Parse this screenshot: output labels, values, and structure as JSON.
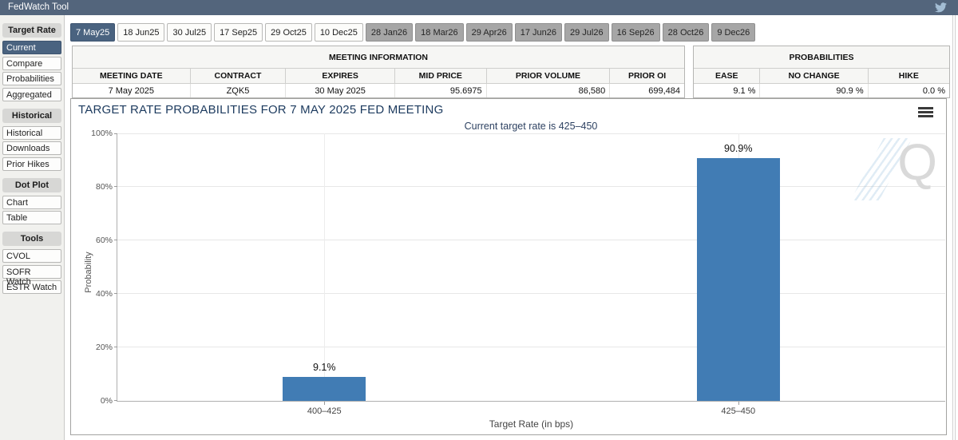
{
  "top_bar": {
    "title": "FedWatch Tool",
    "twitter_icon_color": "#a3bdd4",
    "bg_color": "#53657c"
  },
  "sidebar": {
    "sections": [
      {
        "header": "Target Rate",
        "items": [
          {
            "label": "Current",
            "selected": true
          },
          {
            "label": "Compare",
            "selected": false
          },
          {
            "label": "Probabilities",
            "selected": false
          },
          {
            "label": "Aggregated",
            "selected": false
          }
        ]
      },
      {
        "header": "Historical",
        "items": [
          {
            "label": "Historical",
            "selected": false
          },
          {
            "label": "Downloads",
            "selected": false
          },
          {
            "label": "Prior Hikes",
            "selected": false
          }
        ]
      },
      {
        "header": "Dot Plot",
        "items": [
          {
            "label": "Chart",
            "selected": false
          },
          {
            "label": "Table",
            "selected": false
          }
        ]
      },
      {
        "header": "Tools",
        "items": [
          {
            "label": "CVOL",
            "selected": false
          },
          {
            "label": "SOFR Watch",
            "selected": false
          },
          {
            "label": "ESTR Watch",
            "selected": false
          }
        ]
      }
    ]
  },
  "tabs": [
    {
      "label": "7 May25",
      "state": "selected"
    },
    {
      "label": "18 Jun25",
      "state": "year25"
    },
    {
      "label": "30 Jul25",
      "state": "year25"
    },
    {
      "label": "17 Sep25",
      "state": "year25"
    },
    {
      "label": "29 Oct25",
      "state": "year25"
    },
    {
      "label": "10 Dec25",
      "state": "year25"
    },
    {
      "label": "28 Jan26",
      "state": "year26"
    },
    {
      "label": "18 Mar26",
      "state": "year26"
    },
    {
      "label": "29 Apr26",
      "state": "year26"
    },
    {
      "label": "17 Jun26",
      "state": "year26"
    },
    {
      "label": "29 Jul26",
      "state": "year26"
    },
    {
      "label": "16 Sep26",
      "state": "year26"
    },
    {
      "label": "28 Oct26",
      "state": "year26"
    },
    {
      "label": "9 Dec26",
      "state": "year26"
    }
  ],
  "meeting_info": {
    "title": "MEETING INFORMATION",
    "columns": [
      "MEETING DATE",
      "CONTRACT",
      "EXPIRES",
      "MID PRICE",
      "PRIOR VOLUME",
      "PRIOR OI"
    ],
    "row": [
      "7 May 2025",
      "ZQK5",
      "30 May 2025",
      "95.6975",
      "86,580",
      "699,484"
    ]
  },
  "probabilities": {
    "title": "PROBABILITIES",
    "columns": [
      "EASE",
      "NO CHANGE",
      "HIKE"
    ],
    "row": [
      "9.1 %",
      "90.9 %",
      "0.0 %"
    ]
  },
  "chart_data": {
    "type": "bar",
    "title": "TARGET RATE PROBABILITIES FOR 7 MAY 2025 FED MEETING",
    "subtitle": "Current target rate is 425–450",
    "categories": [
      "400–425",
      "425–450"
    ],
    "values": [
      9.1,
      90.9
    ],
    "value_labels": [
      "9.1%",
      "90.9%"
    ],
    "xlabel": "Target Rate (in bps)",
    "ylabel": "Probability",
    "ylim": [
      0,
      100
    ],
    "yticks": [
      "0%",
      "20%",
      "40%",
      "60%",
      "80%",
      "100%"
    ],
    "bar_color": "#417cb4",
    "grid": true,
    "legend": "none",
    "watermark": "Q",
    "menu_icon": "hamburger-menu"
  }
}
